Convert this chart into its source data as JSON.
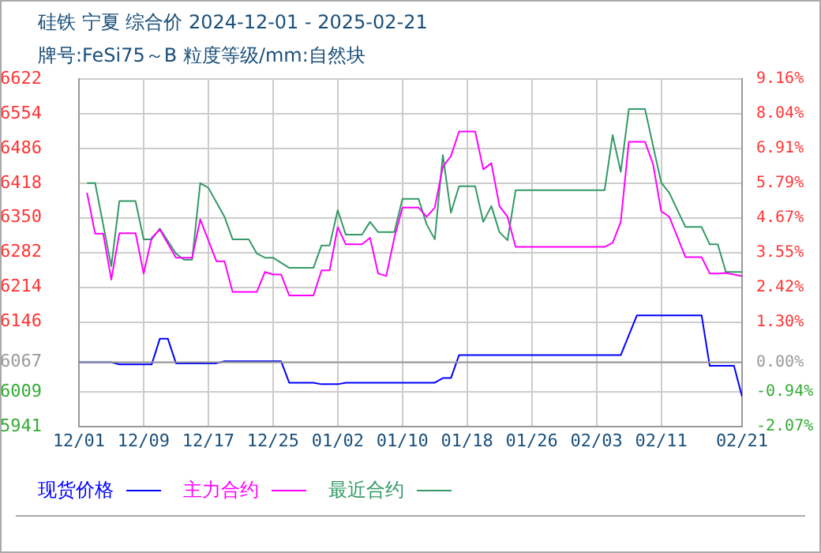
{
  "chart_data": {
    "type": "line",
    "title": "硅铁  宁夏  综合价  2024-12-01 - 2025-02-21",
    "subtitle": "牌号:FeSi75～B 粒度等级/mm:自然块",
    "xlim": [
      "2024-12-01",
      "2025-02-21"
    ],
    "xticks": [
      {
        "value": "2024-12-01",
        "label": "12/01"
      },
      {
        "value": "2024-12-09",
        "label": "12/09"
      },
      {
        "value": "2024-12-17",
        "label": "12/17"
      },
      {
        "value": "2024-12-25",
        "label": "12/25"
      },
      {
        "value": "2025-01-02",
        "label": "01/02"
      },
      {
        "value": "2025-01-10",
        "label": "01/10"
      },
      {
        "value": "2025-01-18",
        "label": "01/18"
      },
      {
        "value": "2025-01-26",
        "label": "01/26"
      },
      {
        "value": "2025-02-03",
        "label": "02/03"
      },
      {
        "value": "2025-02-11",
        "label": "02/11"
      },
      {
        "value": "2025-02-21",
        "label": "02/21"
      }
    ],
    "ylim": [
      5941,
      6622
    ],
    "yticks": [
      5941,
      6009,
      6067,
      6146,
      6214,
      6282,
      6350,
      6418,
      6486,
      6554,
      6622
    ],
    "y2lim": [
      -2.07,
      9.16
    ],
    "y2ticks": [
      {
        "value": -2.07,
        "label": "-2.07%"
      },
      {
        "value": -0.94,
        "label": "-0.94%"
      },
      {
        "value": 0,
        "label": "0.00%"
      },
      {
        "value": 1.3,
        "label": "1.30%"
      },
      {
        "value": 2.42,
        "label": "2.42%"
      },
      {
        "value": 3.55,
        "label": "3.55%"
      },
      {
        "value": 4.67,
        "label": "4.67%"
      },
      {
        "value": 5.79,
        "label": "5.79%"
      },
      {
        "value": 6.91,
        "label": "6.91%"
      },
      {
        "value": 8.04,
        "label": "8.04%"
      },
      {
        "value": 9.16,
        "label": "9.16%"
      }
    ],
    "grid": true,
    "legend": "bottom",
    "ref_lines": [
      {
        "axis": "y",
        "value": 6067,
        "color": "#999999"
      }
    ],
    "series": [
      {
        "name": "现货价格",
        "color": "#0000ff",
        "x": [
          "2024-12-01",
          "2024-12-05",
          "2024-12-06",
          "2024-12-10",
          "2024-12-11",
          "2024-12-12",
          "2024-12-13",
          "2024-12-18",
          "2024-12-19",
          "2024-12-26",
          "2024-12-27",
          "2024-12-30",
          "2024-12-31",
          "2025-01-02",
          "2025-01-03",
          "2025-01-14",
          "2025-01-15",
          "2025-01-16",
          "2025-01-17",
          "2025-02-06",
          "2025-02-08",
          "2025-02-16",
          "2025-02-17",
          "2025-02-20",
          "2025-02-21"
        ],
        "values": [
          6067,
          6067,
          6063,
          6063,
          6113,
          6113,
          6065,
          6065,
          6069,
          6069,
          6027,
          6027,
          6024,
          6024,
          6027,
          6027,
          6036,
          6036,
          6081,
          6081,
          6159,
          6159,
          6060,
          6060,
          6000
        ]
      },
      {
        "name": "主力合约",
        "color": "#ff00ff",
        "x": [
          "2024-12-02",
          "2024-12-03",
          "2024-12-04",
          "2024-12-05",
          "2024-12-06",
          "2024-12-08",
          "2024-12-09",
          "2024-12-10",
          "2024-12-11",
          "2024-12-13",
          "2024-12-15",
          "2024-12-16",
          "2024-12-18",
          "2024-12-19",
          "2024-12-20",
          "2024-12-23",
          "2024-12-24",
          "2024-12-25",
          "2024-12-26",
          "2024-12-27",
          "2024-12-30",
          "2024-12-31",
          "2025-01-01",
          "2025-01-02",
          "2025-01-03",
          "2025-01-05",
          "2025-01-06",
          "2025-01-07",
          "2025-01-08",
          "2025-01-09",
          "2025-01-10",
          "2025-01-12",
          "2025-01-13",
          "2025-01-14",
          "2025-01-15",
          "2025-01-16",
          "2025-01-17",
          "2025-01-19",
          "2025-01-20",
          "2025-01-21",
          "2025-01-22",
          "2025-01-23",
          "2025-01-24",
          "2025-02-04",
          "2025-02-05",
          "2025-02-06",
          "2025-02-07",
          "2025-02-09",
          "2025-02-10",
          "2025-02-11",
          "2025-02-12",
          "2025-02-14",
          "2025-02-16",
          "2025-02-17",
          "2025-02-18",
          "2025-02-19",
          "2025-02-21"
        ],
        "values": [
          6399,
          6319,
          6319,
          6229,
          6320,
          6320,
          6241,
          6311,
          6327,
          6272,
          6272,
          6347,
          6265,
          6265,
          6205,
          6205,
          6244,
          6239,
          6239,
          6198,
          6198,
          6247,
          6247,
          6332,
          6298,
          6298,
          6311,
          6241,
          6236,
          6311,
          6370,
          6370,
          6352,
          6370,
          6450,
          6471,
          6519,
          6519,
          6445,
          6457,
          6373,
          6352,
          6293,
          6293,
          6301,
          6342,
          6499,
          6499,
          6455,
          6363,
          6352,
          6273,
          6273,
          6241,
          6241,
          6242,
          6236
        ]
      },
      {
        "name": "最近合约",
        "color": "#339966",
        "x": [
          "2024-12-02",
          "2024-12-03",
          "2024-12-05",
          "2024-12-06",
          "2024-12-08",
          "2024-12-09",
          "2024-12-10",
          "2024-12-11",
          "2024-12-13",
          "2024-12-14",
          "2024-12-15",
          "2024-12-16",
          "2024-12-17",
          "2024-12-19",
          "2024-12-20",
          "2024-12-22",
          "2024-12-23",
          "2024-12-24",
          "2024-12-25",
          "2024-12-26",
          "2024-12-27",
          "2024-12-30",
          "2024-12-31",
          "2025-01-01",
          "2025-01-02",
          "2025-01-03",
          "2025-01-05",
          "2025-01-06",
          "2025-01-07",
          "2025-01-09",
          "2025-01-10",
          "2025-01-12",
          "2025-01-13",
          "2025-01-14",
          "2025-01-15",
          "2025-01-16",
          "2025-01-17",
          "2025-01-19",
          "2025-01-20",
          "2025-01-21",
          "2025-01-22",
          "2025-01-23",
          "2025-01-24",
          "2025-02-04",
          "2025-02-05",
          "2025-02-06",
          "2025-02-07",
          "2025-02-09",
          "2025-02-11",
          "2025-02-12",
          "2025-02-14",
          "2025-02-16",
          "2025-02-17",
          "2025-02-18",
          "2025-02-19",
          "2025-02-21"
        ],
        "values": [
          6418,
          6418,
          6255,
          6383,
          6383,
          6308,
          6308,
          6329,
          6280,
          6268,
          6268,
          6418,
          6409,
          6352,
          6308,
          6308,
          6280,
          6272,
          6272,
          6262,
          6252,
          6252,
          6296,
          6296,
          6365,
          6317,
          6317,
          6342,
          6322,
          6322,
          6387,
          6387,
          6337,
          6308,
          6473,
          6360,
          6412,
          6412,
          6342,
          6373,
          6322,
          6306,
          6404,
          6404,
          6512,
          6440,
          6563,
          6563,
          6419,
          6399,
          6332,
          6332,
          6298,
          6298,
          6244,
          6244
        ]
      }
    ]
  }
}
